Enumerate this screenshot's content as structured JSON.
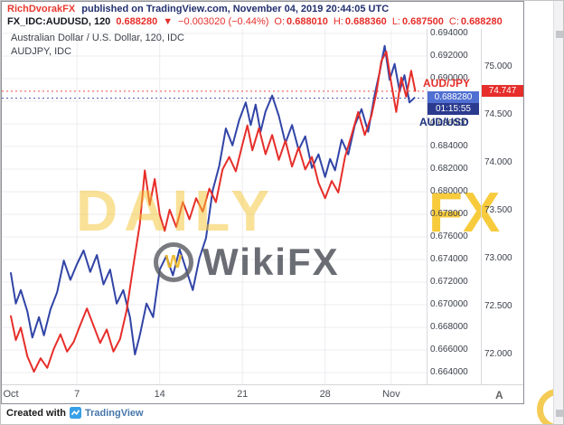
{
  "header": {
    "author": "RichDvorakFX",
    "published": "published on TradingView.com, November 04, 2019 20:44:05 UTC"
  },
  "symbol_bar": {
    "symbol": "FX_IDC:AUDUSD, 120",
    "last": "0.688280",
    "arrow": "▼",
    "change": "−0.003020 (−0.44%)",
    "open_label": "O:",
    "open": "0.688010",
    "high_label": "H:",
    "high": "0.688360",
    "low_label": "L:",
    "low": "0.687500",
    "close_label": "C:",
    "close": "0.688280"
  },
  "legend": {
    "line1": "Australian Dollar / U.S. Dollar, 120, IDC",
    "line2": "AUDJPY, IDC"
  },
  "labels": {
    "audjpy": "AUD/JPY",
    "audusd": "AUD/USD"
  },
  "price_scale": {
    "audusd_ticks": [
      "0.694000",
      "0.692000",
      "0.690000",
      "0.688000",
      "0.686000",
      "0.684000",
      "0.682000",
      "0.680000",
      "0.678000",
      "0.676000",
      "0.674000",
      "0.672000",
      "0.670000",
      "0.668000",
      "0.666000",
      "0.664000"
    ],
    "audusd_last_badge": "0.688280",
    "countdown": "01:15:55",
    "audjpy_ticks": [
      "75.000",
      "74.500",
      "74.000",
      "73.500",
      "73.000",
      "72.500",
      "72.000"
    ],
    "audjpy_last_badge": "74.747"
  },
  "footer": {
    "created_with": "Created with",
    "brand": "TradingView"
  },
  "watermarks": {
    "dailyfx_dim": "DAILY",
    "dailyfx_bright": "FX",
    "wikifx_logo_letter": "W",
    "wikifx": "WikiFX"
  },
  "misc": {
    "axis_button": "A"
  },
  "colors": {
    "audjpy_red": "#e62e2a",
    "audusd_blue": "#3144a6",
    "badge_blue_bg": "#4f6fd2",
    "countdown_bg": "#2b3a8e",
    "badge_red_bg": "#e62e2a",
    "header_navy": "#222f6e",
    "watermark_gold": "#f3ba12",
    "grid": "#ececf0"
  },
  "chart_data": {
    "type": "line",
    "title": "Australian Dollar / U.S. Dollar, 120, IDC",
    "overlay": "AUDJPY, IDC",
    "grid": true,
    "legend_position": "top-left",
    "x_axis": {
      "unit": "trading days since Oct 1, 2019",
      "tick_days": [
        0,
        4,
        9,
        14,
        19,
        23
      ],
      "tick_labels": [
        "Oct",
        "7",
        "14",
        "21",
        "28",
        "Nov"
      ],
      "range_days": [
        0,
        25
      ]
    },
    "series": [
      {
        "name": "AUD/USD",
        "color": "#3144a6",
        "scale": "inner-right",
        "ylim": [
          0.664,
          0.694
        ],
        "last": 0.68828,
        "points": [
          [
            0,
            0.6728
          ],
          [
            0.3,
            0.6701
          ],
          [
            0.6,
            0.6713
          ],
          [
            1,
            0.6694
          ],
          [
            1.3,
            0.6671
          ],
          [
            1.7,
            0.6689
          ],
          [
            2,
            0.6673
          ],
          [
            2.4,
            0.6696
          ],
          [
            2.8,
            0.6711
          ],
          [
            3.2,
            0.6739
          ],
          [
            3.6,
            0.6722
          ],
          [
            4,
            0.6736
          ],
          [
            4.4,
            0.6748
          ],
          [
            4.8,
            0.6729
          ],
          [
            5.2,
            0.6744
          ],
          [
            5.6,
            0.6718
          ],
          [
            6,
            0.6731
          ],
          [
            6.4,
            0.6701
          ],
          [
            6.8,
            0.6713
          ],
          [
            7.2,
            0.6689
          ],
          [
            7.5,
            0.6656
          ],
          [
            7.8,
            0.6673
          ],
          [
            8.2,
            0.6701
          ],
          [
            8.6,
            0.6689
          ],
          [
            9,
            0.6731
          ],
          [
            9.4,
            0.6743
          ],
          [
            9.8,
            0.6726
          ],
          [
            10.2,
            0.6749
          ],
          [
            10.6,
            0.6731
          ],
          [
            11,
            0.6713
          ],
          [
            11.4,
            0.6741
          ],
          [
            11.8,
            0.6759
          ],
          [
            12.2,
            0.6801
          ],
          [
            12.6,
            0.6823
          ],
          [
            13,
            0.6856
          ],
          [
            13.4,
            0.6841
          ],
          [
            13.8,
            0.6863
          ],
          [
            14.2,
            0.6879
          ],
          [
            14.5,
            0.6859
          ],
          [
            14.8,
            0.6877
          ],
          [
            15.1,
            0.6853
          ],
          [
            15.4,
            0.6871
          ],
          [
            15.8,
            0.6885
          ],
          [
            16.2,
            0.6867
          ],
          [
            16.6,
            0.6843
          ],
          [
            17,
            0.6859
          ],
          [
            17.4,
            0.6837
          ],
          [
            17.8,
            0.6849
          ],
          [
            18.2,
            0.6821
          ],
          [
            18.6,
            0.6833
          ],
          [
            19,
            0.6813
          ],
          [
            19.3,
            0.6829
          ],
          [
            19.6,
            0.6819
          ],
          [
            20,
            0.6846
          ],
          [
            20.4,
            0.6833
          ],
          [
            20.8,
            0.6859
          ],
          [
            21.2,
            0.6873
          ],
          [
            21.6,
            0.6853
          ],
          [
            22,
            0.6886
          ],
          [
            22.3,
            0.6906
          ],
          [
            22.6,
            0.6929
          ],
          [
            22.9,
            0.6899
          ],
          [
            23.2,
            0.6913
          ],
          [
            23.5,
            0.6889
          ],
          [
            23.8,
            0.6903
          ],
          [
            24.1,
            0.6879
          ],
          [
            24.4,
            0.6883
          ]
        ]
      },
      {
        "name": "AUD/JPY",
        "color": "#e62e2a",
        "scale": "outer-right",
        "ylim": [
          72.0,
          75.0
        ],
        "last": 74.747,
        "points": [
          [
            0,
            72.4
          ],
          [
            0.3,
            72.15
          ],
          [
            0.6,
            72.28
          ],
          [
            1,
            71.98
          ],
          [
            1.4,
            71.82
          ],
          [
            1.8,
            71.96
          ],
          [
            2.2,
            71.86
          ],
          [
            2.6,
            72.06
          ],
          [
            3,
            72.21
          ],
          [
            3.4,
            72.03
          ],
          [
            3.8,
            72.13
          ],
          [
            4.2,
            72.31
          ],
          [
            4.6,
            72.48
          ],
          [
            5,
            72.3
          ],
          [
            5.4,
            72.12
          ],
          [
            5.8,
            72.26
          ],
          [
            6.2,
            72.03
          ],
          [
            6.6,
            72.16
          ],
          [
            7,
            72.46
          ],
          [
            7.4,
            72.92
          ],
          [
            7.8,
            73.36
          ],
          [
            8.1,
            73.92
          ],
          [
            8.4,
            73.56
          ],
          [
            8.7,
            73.83
          ],
          [
            9,
            73.46
          ],
          [
            9.3,
            73.29
          ],
          [
            9.6,
            73.51
          ],
          [
            10,
            73.33
          ],
          [
            10.4,
            73.59
          ],
          [
            10.8,
            73.41
          ],
          [
            11.2,
            73.63
          ],
          [
            11.6,
            73.49
          ],
          [
            12,
            73.73
          ],
          [
            12.4,
            73.59
          ],
          [
            12.8,
            73.93
          ],
          [
            13.2,
            74.06
          ],
          [
            13.6,
            73.91
          ],
          [
            14,
            74.19
          ],
          [
            14.3,
            74.39
          ],
          [
            14.6,
            74.13
          ],
          [
            15,
            74.36
          ],
          [
            15.4,
            74.09
          ],
          [
            15.8,
            74.29
          ],
          [
            16.2,
            74.03
          ],
          [
            16.6,
            74.23
          ],
          [
            17,
            73.96
          ],
          [
            17.4,
            74.16
          ],
          [
            17.8,
            73.93
          ],
          [
            18.2,
            74.06
          ],
          [
            18.6,
            73.79
          ],
          [
            19,
            73.63
          ],
          [
            19.4,
            73.81
          ],
          [
            19.8,
            73.69
          ],
          [
            20.2,
            74.06
          ],
          [
            20.6,
            74.29
          ],
          [
            21,
            74.53
          ],
          [
            21.4,
            74.29
          ],
          [
            21.8,
            74.49
          ],
          [
            22.1,
            74.73
          ],
          [
            22.4,
            75.06
          ],
          [
            22.7,
            75.16
          ],
          [
            23,
            74.83
          ],
          [
            23.3,
            74.53
          ],
          [
            23.6,
            74.89
          ],
          [
            23.9,
            74.69
          ],
          [
            24.2,
            74.96
          ],
          [
            24.45,
            74.75
          ]
        ]
      }
    ]
  }
}
